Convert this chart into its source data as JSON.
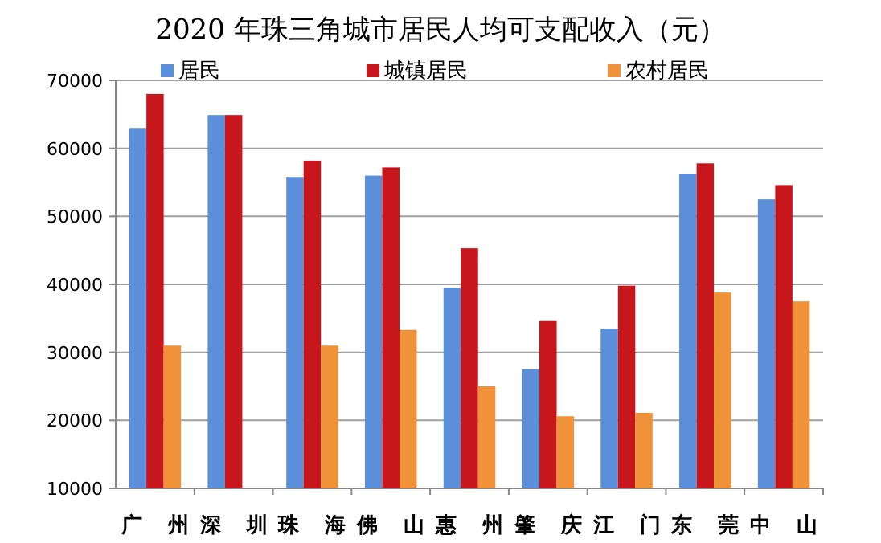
{
  "chart_data": {
    "type": "bar",
    "title": "2020 年珠三角城市居民人均可支配收入（元）",
    "categories": [
      "广州",
      "深圳",
      "珠海",
      "佛山",
      "惠州",
      "肇庆",
      "江门",
      "东莞",
      "中山"
    ],
    "series": [
      {
        "name": "居民",
        "color": "#5b8fd9",
        "values": [
          63000,
          64900,
          55800,
          56000,
          39500,
          27500,
          33500,
          56300,
          52500
        ]
      },
      {
        "name": "城镇居民",
        "color": "#c8161d",
        "values": [
          68000,
          64900,
          58200,
          57200,
          45300,
          34600,
          39800,
          57800,
          54600
        ]
      },
      {
        "name": "农村居民",
        "color": "#f0923a",
        "values": [
          31000,
          null,
          31000,
          33300,
          25000,
          20600,
          21100,
          38800,
          37500
        ]
      }
    ],
    "ylim": [
      10000,
      70000
    ],
    "yticks": [
      10000,
      20000,
      30000,
      40000,
      50000,
      60000,
      70000
    ],
    "grid": "y",
    "legend": "top"
  }
}
